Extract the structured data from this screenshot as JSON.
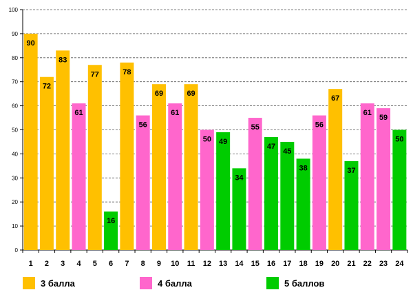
{
  "chart_data": {
    "type": "bar",
    "title": "",
    "xlabel": "",
    "ylabel": "",
    "ylim": [
      0,
      100
    ],
    "yticks": [
      0,
      10,
      20,
      30,
      40,
      50,
      60,
      70,
      80,
      90,
      100
    ],
    "grid": true,
    "categories": [
      "1",
      "2",
      "3",
      "4",
      "5",
      "6",
      "7",
      "8",
      "9",
      "10",
      "11",
      "12",
      "13",
      "14",
      "15",
      "16",
      "17",
      "18",
      "19",
      "20",
      "21",
      "22",
      "23",
      "24"
    ],
    "values": [
      90,
      72,
      83,
      61,
      77,
      16,
      78,
      56,
      69,
      61,
      69,
      50,
      49,
      34,
      55,
      47,
      45,
      38,
      56,
      67,
      37,
      61,
      59,
      50
    ],
    "groups": [
      "g3",
      "g3",
      "g3",
      "g4",
      "g3",
      "g5",
      "g3",
      "g4",
      "g3",
      "g4",
      "g3",
      "g4",
      "g5",
      "g5",
      "g4",
      "g5",
      "g5",
      "g5",
      "g4",
      "g3",
      "g5",
      "g4",
      "g4",
      "g5"
    ],
    "legend": [
      {
        "key": "g3",
        "label": "3 балла",
        "color": "#FFC000"
      },
      {
        "key": "g4",
        "label": "4 балла",
        "color": "#FF66CC"
      },
      {
        "key": "g5",
        "label": "5 баллов",
        "color": "#00CC00"
      }
    ]
  }
}
